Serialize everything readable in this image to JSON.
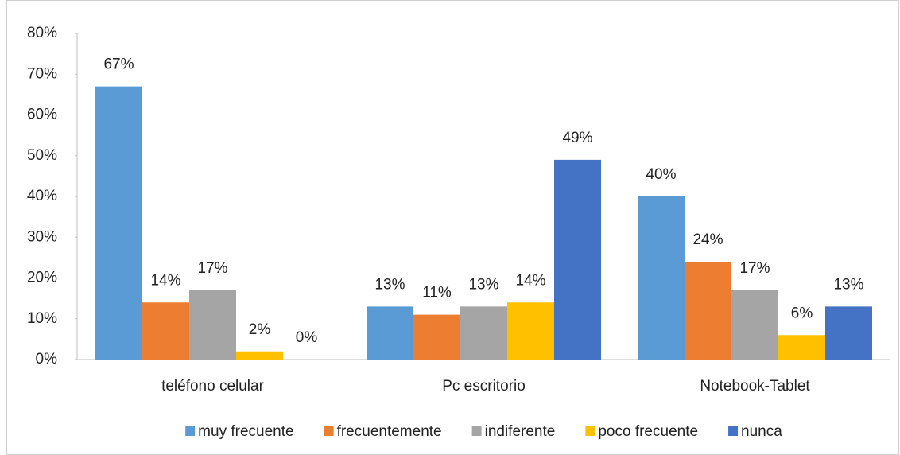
{
  "chart_data": {
    "type": "bar",
    "categories": [
      "teléfono celular",
      "Pc escritorio",
      "Notebook-Tablet"
    ],
    "series": [
      {
        "name": "muy frecuente",
        "color": "#5b9bd5",
        "values": [
          67,
          13,
          40
        ],
        "value_labels": [
          "67%",
          "13%",
          "40%"
        ]
      },
      {
        "name": "frecuentemente",
        "color": "#ed7d31",
        "values": [
          14,
          11,
          24
        ],
        "value_labels": [
          "14%",
          "11%",
          "24%"
        ]
      },
      {
        "name": "indiferente",
        "color": "#a5a5a5",
        "values": [
          17,
          13,
          17
        ],
        "value_labels": [
          "17%",
          "13%",
          "17%"
        ]
      },
      {
        "name": "poco frecuente",
        "color": "#ffc000",
        "values": [
          2,
          14,
          6
        ],
        "value_labels": [
          "2%",
          "14%",
          "6%"
        ]
      },
      {
        "name": "nunca",
        "color": "#4472c4",
        "values": [
          0,
          49,
          13
        ],
        "value_labels": [
          "0%",
          "49%",
          "13%"
        ]
      }
    ],
    "ylim": [
      0,
      80
    ],
    "yticks": [
      {
        "value": 0,
        "label": "0%"
      },
      {
        "value": 10,
        "label": "10%"
      },
      {
        "value": 20,
        "label": "20%"
      },
      {
        "value": 30,
        "label": "30%"
      },
      {
        "value": 40,
        "label": "40%"
      },
      {
        "value": 50,
        "label": "50%"
      },
      {
        "value": 60,
        "label": "60%"
      },
      {
        "value": 70,
        "label": "70%"
      },
      {
        "value": 80,
        "label": "80%"
      }
    ],
    "grid": false,
    "legend": "bottom"
  }
}
